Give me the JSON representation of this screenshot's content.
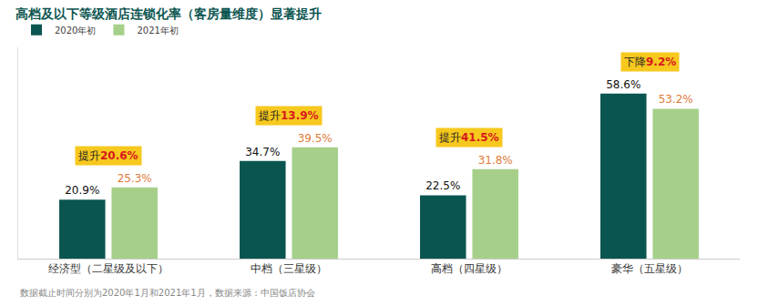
{
  "chart_data": {
    "type": "bar",
    "title": "高档及以下等级酒店连锁化率（客房量维度）显著提升",
    "categories": [
      "经济型（二星级及以下）",
      "中档（三星级）",
      "高档（四星级）",
      "豪华（五星级）"
    ],
    "series": [
      {
        "name": "2020年初",
        "color": "#0b5550",
        "values": [
          20.9,
          34.7,
          22.5,
          58.6
        ],
        "value_labels": [
          "20.9%",
          "34.7%",
          "22.5%",
          "58.6%"
        ]
      },
      {
        "name": "2021年初",
        "color": "#a6d08a",
        "values": [
          25.3,
          39.5,
          31.8,
          53.2
        ],
        "value_labels": [
          "25.3%",
          "39.5%",
          "31.8%",
          "53.2%"
        ]
      }
    ],
    "ylim": [
      0,
      75
    ],
    "data_labels": true,
    "tick_labels": "x",
    "grid": false,
    "legend": "top-left",
    "annotations": [
      {
        "category": "经济型（二星级及以下）",
        "text": "提升20.6%"
      },
      {
        "category": "中档（三星级）",
        "text": "提升13.9%"
      },
      {
        "category": "高档（四星级）",
        "text": "提升41.5%"
      },
      {
        "category": "豪华（五星级）",
        "text": "下降9.2%"
      }
    ],
    "footnote": "数据截止时间分别为2020年1月和2021年1月，数据来源：中国饭店协会"
  }
}
